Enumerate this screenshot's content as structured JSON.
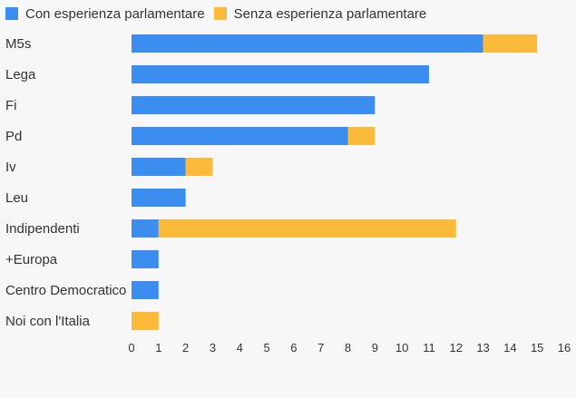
{
  "chart_data": {
    "type": "bar",
    "orientation": "horizontal",
    "stacked": true,
    "categories": [
      "M5s",
      "Lega",
      "Fi",
      "Pd",
      "Iv",
      "Leu",
      "Indipendenti",
      "+Europa",
      "Centro Democratico",
      "Noi con l'Italia"
    ],
    "series": [
      {
        "name": "Con esperienza parlamentare",
        "color": "#3b8ef0",
        "values": [
          13,
          11,
          9,
          8,
          2,
          2,
          1,
          1,
          1,
          0
        ]
      },
      {
        "name": "Senza esperienza parlamentare",
        "color": "#fbba3a",
        "values": [
          2,
          0,
          0,
          1,
          1,
          0,
          11,
          0,
          0,
          1
        ]
      }
    ],
    "xlim": [
      0,
      16
    ],
    "xticks": [
      0,
      1,
      2,
      3,
      4,
      5,
      6,
      7,
      8,
      9,
      10,
      11,
      12,
      13,
      14,
      15,
      16
    ],
    "legend_position": "top-left",
    "grid": false
  }
}
